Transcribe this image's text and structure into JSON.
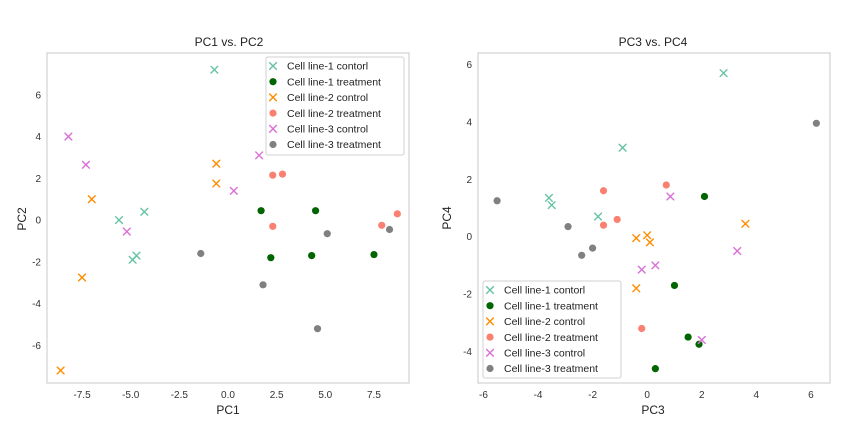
{
  "legend_labels": [
    "Cell line-1 contorl",
    "Cell line-1 treatment",
    "Cell line-2 control",
    "Cell line-2 treatment",
    "Cell line-3 control",
    "Cell line-3 treatment"
  ],
  "colors": {
    "Cell line-1 contorl": "#66c2a5",
    "Cell line-1 treatment": "#006400",
    "Cell line-2 control": "#ff8c00",
    "Cell line-2 treatment": "#fa8072",
    "Cell line-3 control": "#da70d6",
    "Cell line-3 treatment": "#808080"
  },
  "chart_data": [
    {
      "type": "scatter",
      "title": "PC1 vs. PC2",
      "xlabel": "PC1",
      "ylabel": "PC2",
      "xlim": [
        -9.3,
        9.3
      ],
      "ylim": [
        -7.8,
        8.0
      ],
      "xticks": [
        -7.5,
        -5.0,
        -2.5,
        0.0,
        2.5,
        5.0,
        7.5
      ],
      "xtick_labels": [
        "-7.5",
        "-5.0",
        "-2.5",
        "0.0",
        "2.5",
        "5.0",
        "7.5"
      ],
      "yticks": [
        -6,
        -4,
        -2,
        0,
        2,
        4,
        6
      ],
      "ytick_labels": [
        "-6",
        "-4",
        "-2",
        "0",
        "2",
        "4",
        "6"
      ],
      "legend_position": "top-right",
      "series": [
        {
          "name": "Cell line-1 contorl",
          "marker": "x",
          "x": [
            -0.7,
            -5.6,
            -4.3,
            -4.9,
            -4.7
          ],
          "y": [
            7.2,
            0.0,
            0.4,
            -1.9,
            -1.7
          ]
        },
        {
          "name": "Cell line-1 treatment",
          "marker": "o",
          "x": [
            1.7,
            4.5,
            2.2,
            4.3,
            7.5
          ],
          "y": [
            0.45,
            0.45,
            -1.8,
            -1.7,
            -1.65
          ]
        },
        {
          "name": "Cell line-2 control",
          "marker": "x",
          "x": [
            -0.6,
            -0.6,
            -7.0,
            -7.5,
            -8.6
          ],
          "y": [
            2.7,
            1.75,
            1.0,
            -2.75,
            -7.2
          ]
        },
        {
          "name": "Cell line-2 treatment",
          "marker": "o",
          "x": [
            2.3,
            2.8,
            2.3,
            7.9,
            8.7
          ],
          "y": [
            2.15,
            2.2,
            -0.3,
            -0.25,
            0.3
          ]
        },
        {
          "name": "Cell line-3 control",
          "marker": "x",
          "x": [
            -8.2,
            -7.3,
            1.6,
            0.3,
            -5.2
          ],
          "y": [
            4.0,
            2.65,
            3.1,
            1.4,
            -0.55
          ]
        },
        {
          "name": "Cell line-3 treatment",
          "marker": "o",
          "x": [
            -1.4,
            1.8,
            4.6,
            5.1,
            8.3
          ],
          "y": [
            -1.6,
            -3.1,
            -5.2,
            -0.65,
            -0.45
          ]
        }
      ]
    },
    {
      "type": "scatter",
      "title": "PC3 vs. PC4",
      "xlabel": "PC3",
      "ylabel": "PC4",
      "xlim": [
        -6.2,
        6.7
      ],
      "ylim": [
        -5.1,
        6.4
      ],
      "xticks": [
        -6,
        -4,
        -2,
        0,
        2,
        4,
        6
      ],
      "xtick_labels": [
        "-6",
        "-4",
        "-2",
        "0",
        "2",
        "4",
        "6"
      ],
      "yticks": [
        -4,
        -2,
        0,
        2,
        4,
        6
      ],
      "ytick_labels": [
        "-4",
        "-2",
        "0",
        "2",
        "4",
        "6"
      ],
      "legend_position": "bottom-left",
      "series": [
        {
          "name": "Cell line-1 contorl",
          "marker": "x",
          "x": [
            2.8,
            -0.9,
            -3.6,
            -3.5,
            -1.8
          ],
          "y": [
            5.7,
            3.1,
            1.35,
            1.1,
            0.7
          ]
        },
        {
          "name": "Cell line-1 treatment",
          "marker": "o",
          "x": [
            2.1,
            1.0,
            1.5,
            1.9,
            0.3
          ],
          "y": [
            1.4,
            -1.7,
            -3.5,
            -3.75,
            -4.6
          ]
        },
        {
          "name": "Cell line-2 control",
          "marker": "x",
          "x": [
            3.6,
            0.0,
            -0.4,
            0.1,
            -0.4
          ],
          "y": [
            0.45,
            0.05,
            -0.05,
            -0.2,
            -1.8
          ]
        },
        {
          "name": "Cell line-2 treatment",
          "marker": "o",
          "x": [
            -1.6,
            0.7,
            -1.1,
            -1.6,
            -0.2
          ],
          "y": [
            1.6,
            1.8,
            0.6,
            0.4,
            -3.2
          ]
        },
        {
          "name": "Cell line-3 control",
          "marker": "x",
          "x": [
            0.85,
            3.3,
            0.3,
            -0.2,
            2.0
          ],
          "y": [
            1.4,
            -0.5,
            -1.0,
            -1.15,
            -3.6
          ]
        },
        {
          "name": "Cell line-3 treatment",
          "marker": "o",
          "x": [
            -5.5,
            -2.9,
            -2.4,
            -2.0,
            6.2
          ],
          "y": [
            1.25,
            0.35,
            -0.65,
            -0.4,
            3.95
          ]
        }
      ]
    }
  ]
}
